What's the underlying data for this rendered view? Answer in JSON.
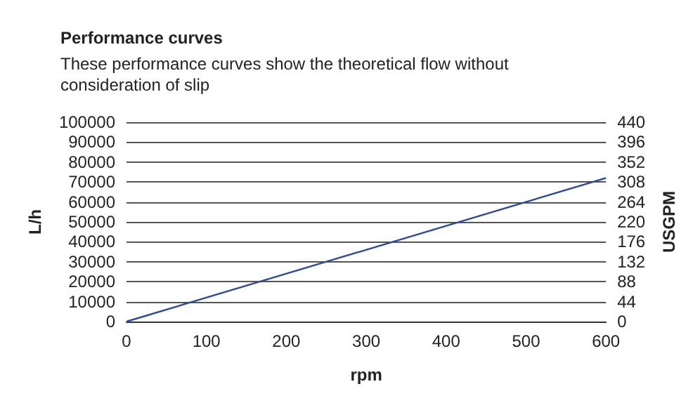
{
  "chart_data": {
    "type": "line",
    "title": "Performance curves",
    "subtitle": "These performance curves show the theoretical flow without\nconsideration of slip",
    "xlabel": "rpm",
    "ylabel": "L/h",
    "y2label": "USGPM",
    "x": [
      0,
      600
    ],
    "series": [
      {
        "color": "#2e4a9e",
        "values": [
          0,
          72000
        ]
      }
    ],
    "xlim": [
      0,
      600
    ],
    "xticks": [
      0,
      100,
      200,
      300,
      400,
      500,
      600
    ],
    "ylim": [
      0,
      100000
    ],
    "yticks": [
      0,
      10000,
      20000,
      30000,
      40000,
      50000,
      60000,
      70000,
      80000,
      90000,
      100000
    ],
    "y2lim": [
      0,
      440
    ],
    "y2ticks": [
      0,
      44,
      88,
      132,
      176,
      220,
      264,
      308,
      352,
      396,
      440
    ],
    "grid": "y",
    "marker": "none",
    "line_style": "solid"
  }
}
